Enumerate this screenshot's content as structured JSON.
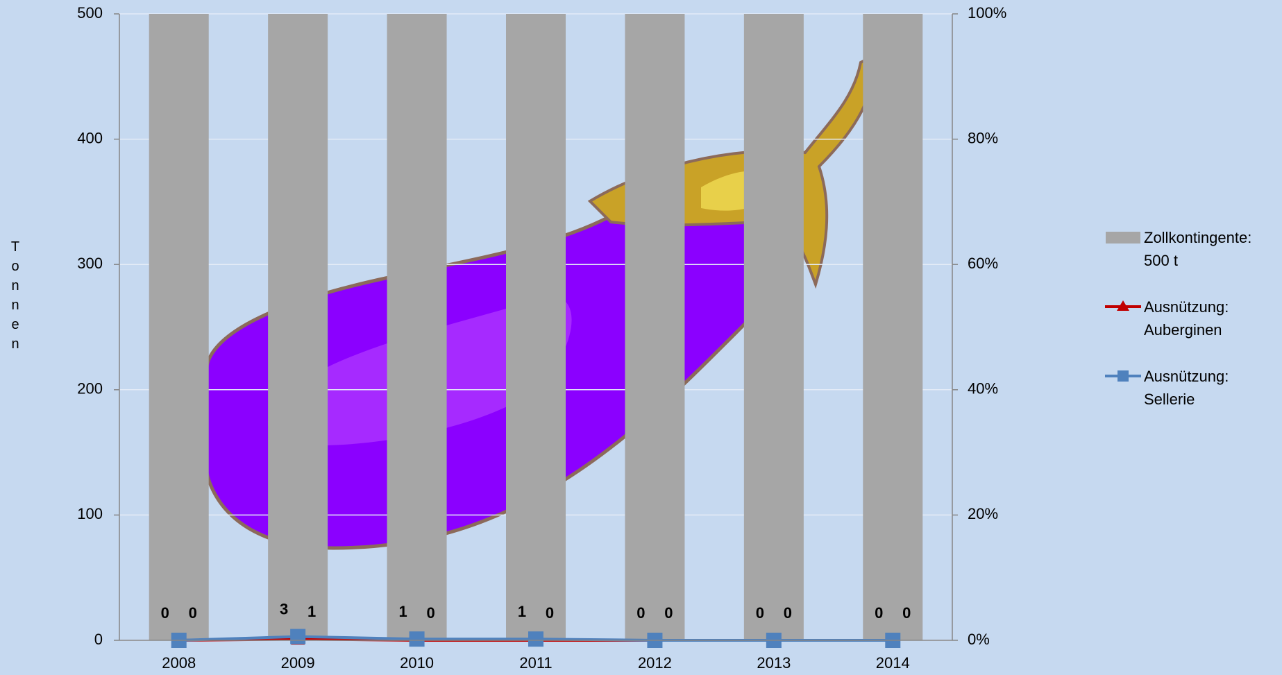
{
  "chart_data": {
    "type": "bar-line",
    "y_label": "Tonnen",
    "categories": [
      "2008",
      "2009",
      "2010",
      "2011",
      "2012",
      "2013",
      "2014"
    ],
    "series": [
      {
        "name": "Zollkontingente: 500 t",
        "type": "bar",
        "color": "#a6a6a6",
        "values": [
          500,
          500,
          500,
          500,
          500,
          500,
          500
        ]
      },
      {
        "name": "Ausnützung: Auberginen",
        "type": "line",
        "marker": "triangle",
        "color": "#c00000",
        "values": [
          0,
          1,
          0,
          0,
          0,
          0,
          0
        ]
      },
      {
        "name": "Ausnützung: Sellerie",
        "type": "line",
        "marker": "square",
        "color": "#4f81bd",
        "values": [
          0,
          3,
          1,
          1,
          0,
          0,
          0
        ]
      }
    ],
    "ylim": [
      0,
      500
    ],
    "yticks": [
      0,
      100,
      200,
      300,
      400,
      500
    ],
    "y2lim": [
      0,
      1
    ],
    "y2ticks": [
      {
        "value": 0,
        "label": "0%"
      },
      {
        "value": 0.2,
        "label": "20%"
      },
      {
        "value": 0.4,
        "label": "40%"
      },
      {
        "value": 0.6,
        "label": "60%"
      },
      {
        "value": 0.8,
        "label": "80%"
      },
      {
        "value": 1,
        "label": "100%"
      }
    ],
    "grid": true
  }
}
